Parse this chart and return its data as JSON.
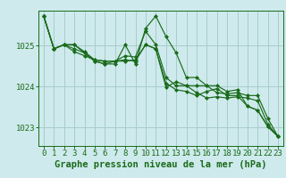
{
  "bg_color": "#ceeaec",
  "grid_color": "#a8cccc",
  "line_color": "#1a6b1a",
  "marker_color": "#1a6b1a",
  "title": "Graphe pression niveau de la mer (hPa)",
  "xlim": [
    -0.5,
    23.5
  ],
  "ylim": [
    1022.55,
    1025.85
  ],
  "yticks": [
    1023,
    1024,
    1025
  ],
  "series": [
    [
      1025.72,
      1024.92,
      1025.02,
      1024.92,
      1024.82,
      1024.62,
      1024.55,
      1024.55,
      1025.02,
      1024.55,
      1025.42,
      1025.72,
      1025.22,
      1024.82,
      1024.22,
      1024.22,
      1024.02,
      1023.85,
      1023.82,
      1023.85,
      1023.78,
      1023.78,
      1023.22,
      1022.78
    ],
    [
      1025.72,
      1024.92,
      1025.02,
      1024.85,
      1024.75,
      1024.65,
      1024.62,
      1024.62,
      1024.75,
      1024.72,
      1025.35,
      1025.02,
      1024.22,
      1024.02,
      1024.02,
      1023.85,
      1023.72,
      1023.75,
      1023.72,
      1023.75,
      1023.72,
      1023.65,
      1023.08,
      1022.78
    ],
    [
      1025.72,
      1024.92,
      1025.02,
      1025.02,
      1024.82,
      1024.62,
      1024.55,
      1024.62,
      1024.62,
      1024.65,
      1025.02,
      1024.92,
      1024.08,
      1023.92,
      1023.88,
      1023.78,
      1023.88,
      1023.95,
      1023.78,
      1023.78,
      1023.52,
      1023.42,
      1023.02,
      1022.78
    ],
    [
      1025.72,
      1024.92,
      1025.02,
      1025.02,
      1024.85,
      1024.65,
      1024.62,
      1024.62,
      1024.65,
      1024.62,
      1025.02,
      1024.92,
      1023.98,
      1024.12,
      1024.02,
      1024.02,
      1024.02,
      1024.02,
      1023.88,
      1023.92,
      1023.52,
      1023.42,
      1023.02,
      1022.78
    ]
  ],
  "tick_fontsize": 6.5,
  "title_fontsize": 7.5
}
